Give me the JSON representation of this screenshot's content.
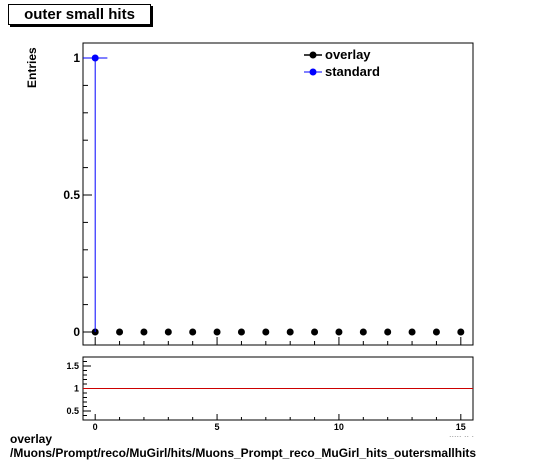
{
  "title": "outer small hits",
  "footer": {
    "line1": "overlay",
    "line2": "/Muons/Prompt/reco/MuGirl/hits/Muons_Prompt_reco_MuGirl_hits_outersmallhits"
  },
  "chart_data": [
    {
      "type": "scatter",
      "ylabel": "Entries",
      "xlim": [
        -0.5,
        15.5
      ],
      "ylim": [
        0,
        1.05
      ],
      "yticks": [
        0,
        0.5,
        1
      ],
      "ytick_labels": [
        "0",
        "0.5",
        "1"
      ],
      "legend": "top-right",
      "series": [
        {
          "name": "overlay",
          "color": "#000000",
          "x": [
            0,
            1,
            2,
            3,
            4,
            5,
            6,
            7,
            8,
            9,
            10,
            11,
            12,
            13,
            14,
            15
          ],
          "y": [
            0,
            0,
            0,
            0,
            0,
            0,
            0,
            0,
            0,
            0,
            0,
            0,
            0,
            0,
            0,
            0
          ]
        },
        {
          "name": "standard",
          "color": "#0000ff",
          "x": [
            0
          ],
          "y": [
            1
          ]
        }
      ]
    },
    {
      "type": "line",
      "xlim": [
        -0.5,
        15.5
      ],
      "ylim": [
        0.3,
        1.7
      ],
      "yticks": [
        0.5,
        1,
        1.5
      ],
      "ytick_labels": [
        "0.5",
        "1",
        "1.5"
      ],
      "xticks": [
        0,
        5,
        10,
        15
      ],
      "xtick_labels": [
        "0",
        "5",
        "10",
        "15"
      ],
      "ratio_line": 1,
      "ratio_color": "#cc0000"
    }
  ]
}
